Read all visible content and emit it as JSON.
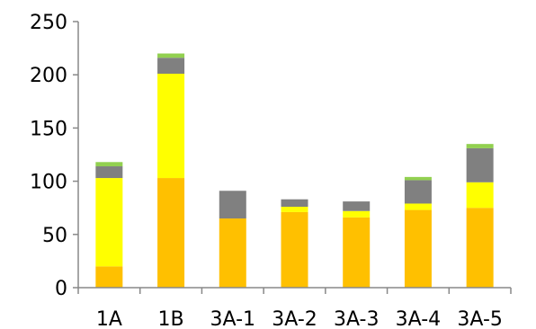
{
  "chart_data": {
    "type": "bar",
    "stacked": true,
    "title": "",
    "xlabel": "",
    "ylabel": "",
    "ylim": [
      0,
      250
    ],
    "yticks": [
      0,
      50,
      100,
      150,
      200,
      250
    ],
    "grid": false,
    "legend": "none",
    "categories": [
      "1A",
      "1B",
      "3A-1",
      "3A-2",
      "3A-3",
      "3A-4",
      "3A-5"
    ],
    "series": [
      {
        "color": "#FFC000",
        "values": [
          20,
          103,
          65,
          71,
          66,
          73,
          75
        ]
      },
      {
        "color": "#FFFF00",
        "values": [
          83,
          98,
          0,
          5,
          6,
          6,
          24
        ]
      },
      {
        "color": "#808080",
        "values": [
          11,
          15,
          26,
          7,
          9,
          22,
          32
        ]
      },
      {
        "color": "#92D050",
        "values": [
          4,
          4,
          0,
          0,
          0,
          3,
          4
        ]
      }
    ]
  }
}
